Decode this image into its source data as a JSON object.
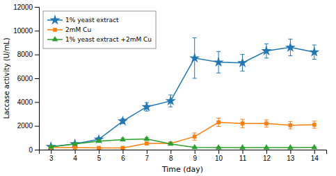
{
  "chart_data": {
    "type": "line",
    "x": [
      3,
      4,
      5,
      6,
      7,
      8,
      9,
      10,
      11,
      12,
      13,
      14
    ],
    "series": [
      {
        "name": "1% yeast extract",
        "marker": "star",
        "values": [
          250,
          480,
          870,
          2400,
          3600,
          4100,
          7700,
          7350,
          7300,
          8300,
          8600,
          8200
        ],
        "yerr": [
          80,
          100,
          150,
          200,
          350,
          500,
          1700,
          900,
          700,
          600,
          700,
          600
        ]
      },
      {
        "name": "2mM Cu",
        "marker": "square",
        "values": [
          180,
          180,
          150,
          150,
          520,
          520,
          1100,
          2300,
          2200,
          2200,
          2050,
          2100
        ],
        "yerr": [
          50,
          50,
          50,
          50,
          120,
          120,
          300,
          350,
          350,
          300,
          300,
          300
        ]
      },
      {
        "name": "1% yeast extract +2mM Cu",
        "marker": "triangle",
        "values": [
          230,
          480,
          720,
          850,
          900,
          480,
          190,
          180,
          170,
          170,
          170,
          190
        ],
        "yerr": [
          60,
          80,
          100,
          130,
          130,
          90,
          50,
          50,
          40,
          40,
          40,
          40
        ]
      }
    ],
    "xlabel": "Time (day)",
    "ylabel": "Laccase activity (U/mL)",
    "xlim": [
      2.5,
      14.5
    ],
    "xticks": [
      3,
      4,
      5,
      6,
      7,
      8,
      9,
      10,
      11,
      12,
      13,
      14
    ],
    "ylim": [
      0,
      12000
    ],
    "yticks": [
      0,
      2000,
      4000,
      6000,
      8000,
      10000,
      12000
    ],
    "grid": false,
    "legend": "upper left"
  }
}
